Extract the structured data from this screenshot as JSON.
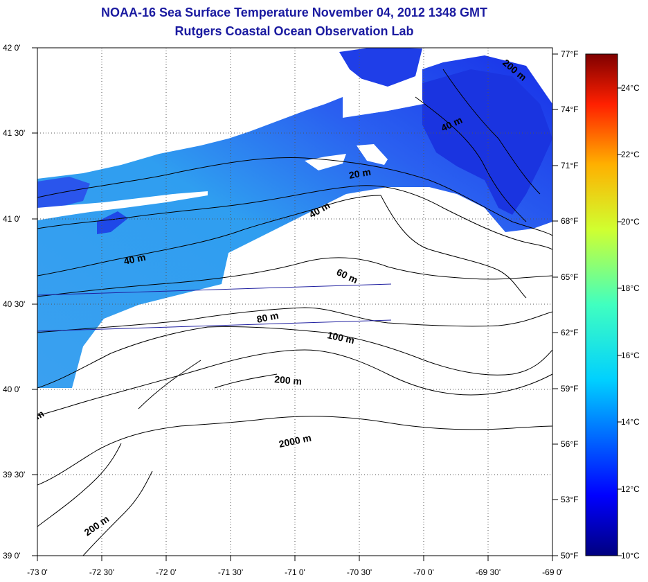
{
  "title_line1": "NOAA-16 Sea Surface Temperature November 04, 2012 1348 GMT",
  "title_line2": "Rutgers Coastal Ocean Observation Lab",
  "lat_labels": [
    "42 0'",
    "41 30'",
    "41 0'",
    "40 30'",
    "40 0'",
    "39 30'",
    "39 0'"
  ],
  "lon_labels": [
    "-73 0'",
    "-72 30'",
    "-72 0'",
    "-71 30'",
    "-71 0'",
    "-70 30'",
    "-70 0'",
    "-69 30'",
    "-69 0'"
  ],
  "fahrenheit_labels": [
    "77°F",
    "74°F",
    "71°F",
    "68°F",
    "65°F",
    "62°F",
    "59°F",
    "56°F",
    "53°F",
    "50°F"
  ],
  "celsius_labels": [
    "24°C",
    "22°C",
    "20°C",
    "18°C",
    "16°C",
    "14°C",
    "12°C",
    "10°C"
  ],
  "contour_labels": {
    "c20": "20 m",
    "c40a": "40 m",
    "c40b": "40 m",
    "c40c": "40 m",
    "c60": "60 m",
    "c80": "80 m",
    "c100": "100 m",
    "c200a": "200 m",
    "c200b": "200 m",
    "c200c": "200 m",
    "c2000": "2000 m",
    "cedge": "m"
  },
  "colors": {
    "title": "#1a1aa0",
    "land": "#ffffff",
    "sst_cool": "#1a3ff0",
    "sst_warm": "#35b8f0"
  }
}
